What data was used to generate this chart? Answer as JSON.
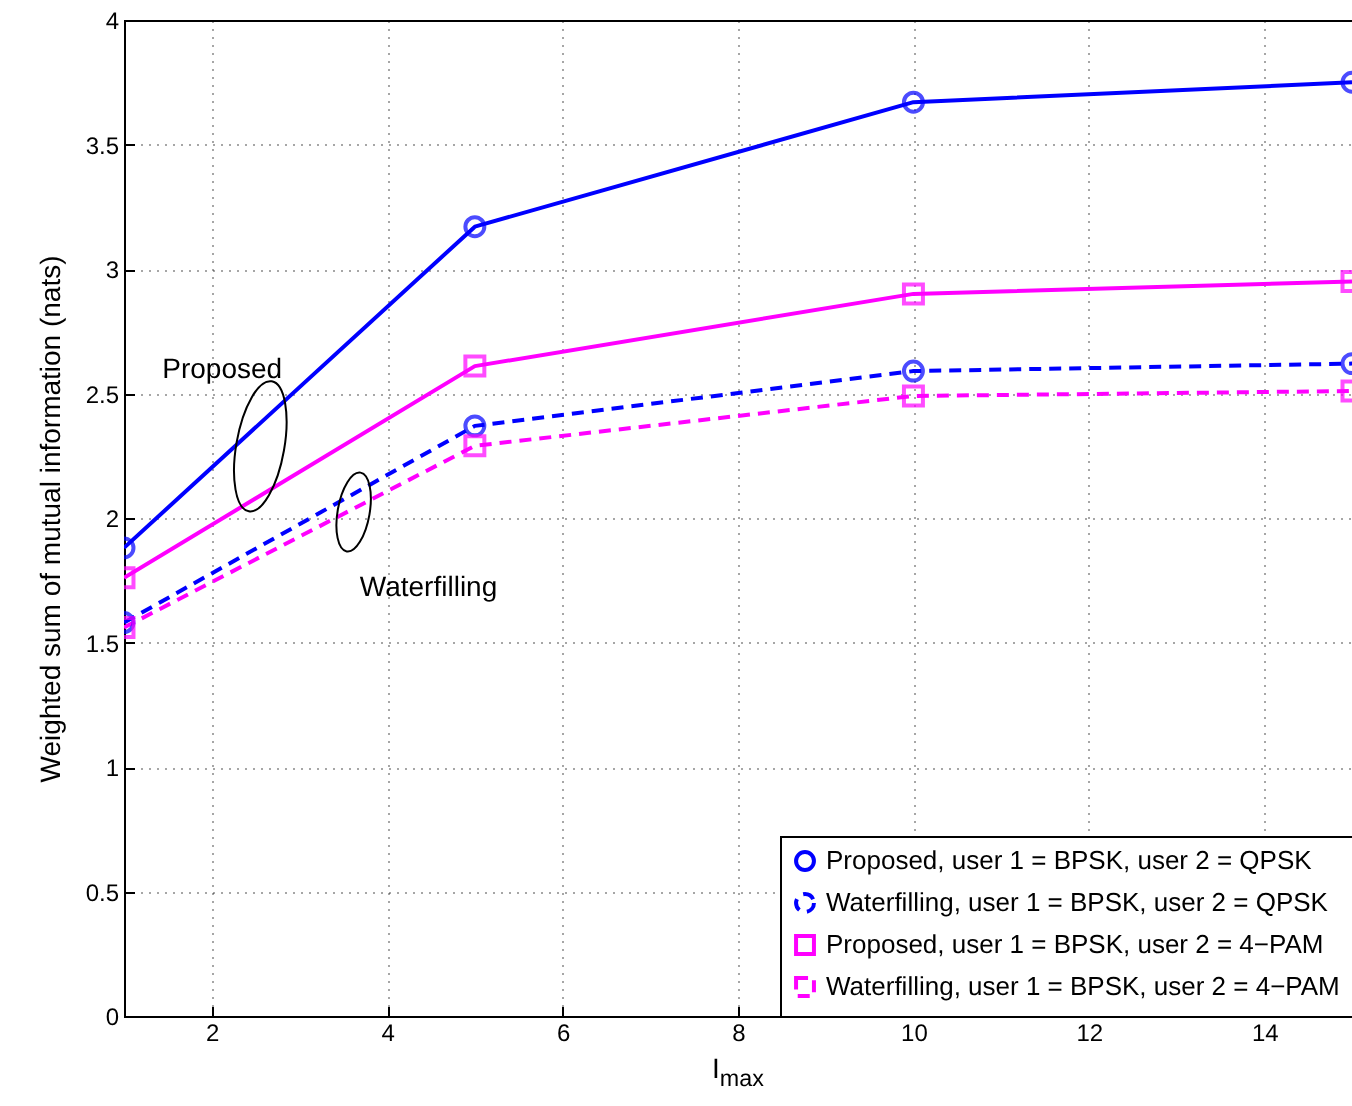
{
  "chart_data": {
    "type": "line",
    "xlabel": "I$_{max}$",
    "ylabel": "Weighted sum of mutual information (nats)",
    "x": [
      1,
      5,
      10,
      15
    ],
    "xlim": [
      1,
      15
    ],
    "xticks": [
      2,
      4,
      6,
      8,
      10,
      12,
      14
    ],
    "ylim": [
      0,
      4
    ],
    "yticks": [
      0,
      0.5,
      1,
      1.5,
      2,
      2.5,
      3,
      3.5,
      4
    ],
    "grid": true,
    "legend": "bottom right",
    "series": [
      {
        "name": "Proposed, user 1 = BPSK, user 2 = QPSK",
        "color": "#0000ff",
        "marker": "circle",
        "line_style": "solid",
        "values": [
          1.88,
          3.17,
          3.67,
          3.75
        ]
      },
      {
        "name": "Waterfilling, user 1 = BPSK, user 2 = QPSK",
        "color": "#0000ff",
        "marker": "circle",
        "line_style": "dashed",
        "values": [
          1.58,
          2.37,
          2.59,
          2.62
        ]
      },
      {
        "name": "Proposed, user 1 = BPSK, user 2 = 4−PAM",
        "color": "#ff00ff",
        "marker": "square",
        "line_style": "solid",
        "values": [
          1.76,
          2.61,
          2.9,
          2.95
        ]
      },
      {
        "name": "Waterfilling, user 1 = BPSK, user 2 = 4−PAM",
        "color": "#ff00ff",
        "marker": "square",
        "line_style": "dashed",
        "values": [
          1.56,
          2.29,
          2.49,
          2.51
        ]
      }
    ],
    "annotations": [
      "Proposed",
      "Waterfilling"
    ]
  }
}
